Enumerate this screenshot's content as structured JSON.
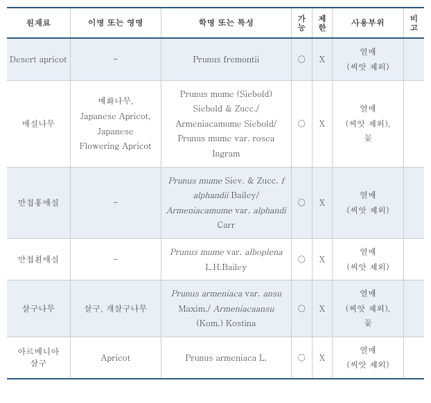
{
  "headers": {
    "material": "원재료",
    "alias": "이명 또는 영명",
    "scientific": "학명 또는 특성",
    "possible": "가능",
    "restricted": "제한",
    "part": "사용부위",
    "note": "비고"
  },
  "rows": [
    {
      "material": "Desert apricot",
      "alias": "-",
      "scientific": "Prunus fremontii",
      "possible": "○",
      "restricted": "X",
      "part": "열매\n(씨앗 제외)",
      "note": ""
    },
    {
      "material": "매실나무",
      "alias": "매화나무,\nJapanese Apricot,\nJapanese\nFlowering Apricot",
      "scientific": "Prunus mume (Siebold)\nSiebold & Zucc./\nArmeniacamume Siebold/\nPrunus mume var. rosea\nIngram",
      "possible": "○",
      "restricted": "X",
      "part": "열매\n(씨앗 제외),\n꽃",
      "note": ""
    },
    {
      "material": "만첩홍매실",
      "alias": "-",
      "scientific_html": "<span class='italic'>Prunus mume</span> Siev. & Zucc. <span class='italic'>f\nalphandii</span> Bailey/\n<span class='italic'>Armeniacamume</span> var. <span class='italic'>alphandi</span>\nCarr",
      "possible": "○",
      "restricted": "X",
      "part": "열매\n(씨앗 제외)",
      "note": ""
    },
    {
      "material": "만첩흰매실",
      "alias": "-",
      "scientific_html": "<span class='italic'>Prunus mume</span> var. <span class='italic'>alboplena</span>\nL.H.Bailey",
      "possible": "○",
      "restricted": "X",
      "part": "열매\n(씨앗 제외)",
      "note": ""
    },
    {
      "material": "살구나무",
      "alias": "살구, 개살구나무",
      "scientific_html": "<span class='italic'>Prunus armeniaca</span> var. <span class='italic'>ansu</span>\nMaxim./ <span class='italic'>Armeniacaansu</span>\n(Kom.) Kostina",
      "possible": "○",
      "restricted": "X",
      "part": "열매\n(씨앗 제외),\n꽃",
      "note": ""
    },
    {
      "material": "아르메니아\n살구",
      "alias": "Apricot",
      "scientific": "Prunus armeniaca L.",
      "possible": "○",
      "restricted": "X",
      "part": "열매\n(씨앗 제외)",
      "note": ""
    }
  ]
}
